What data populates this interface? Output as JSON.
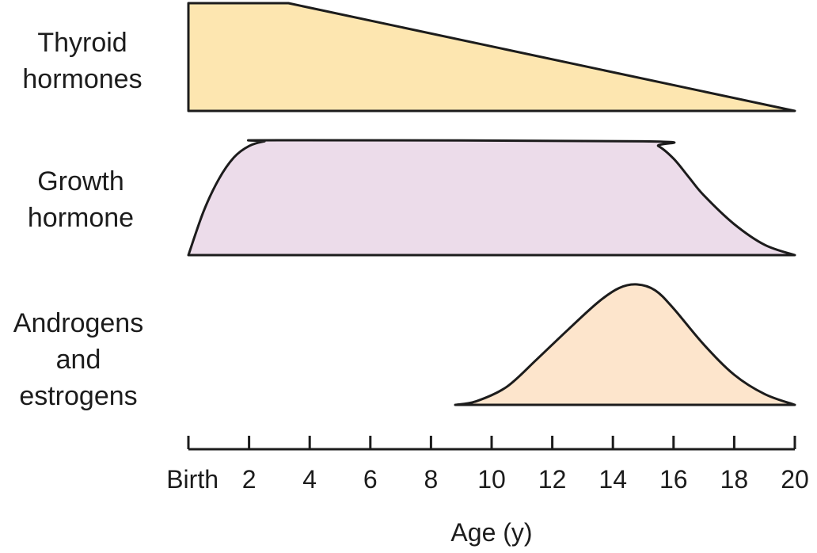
{
  "chart_data": {
    "type": "area",
    "xlabel": "Age (y)",
    "xlim": [
      0,
      20
    ],
    "x_ticks": [
      {
        "value": 0,
        "label": "Birth"
      },
      {
        "value": 2,
        "label": "2"
      },
      {
        "value": 4,
        "label": "4"
      },
      {
        "value": 6,
        "label": "6"
      },
      {
        "value": 8,
        "label": "8"
      },
      {
        "value": 10,
        "label": "10"
      },
      {
        "value": 12,
        "label": "12"
      },
      {
        "value": 14,
        "label": "14"
      },
      {
        "value": 16,
        "label": "16"
      },
      {
        "value": 18,
        "label": "18"
      },
      {
        "value": 20,
        "label": "20"
      }
    ],
    "grid": false,
    "series": [
      {
        "name": "Thyroid hormones",
        "label_lines": [
          "Thyroid",
          "hormones"
        ],
        "color": "#fde6b0",
        "x": [
          0,
          3.3,
          20
        ],
        "y": [
          1,
          1,
          0
        ]
      },
      {
        "name": "Growth hormone",
        "label_lines": [
          "Growth",
          "hormone"
        ],
        "color": "#ecdcea",
        "x": [
          0,
          0.5,
          1,
          1.5,
          2,
          2.5,
          3,
          15,
          15.5,
          16,
          16.5,
          17,
          18,
          19,
          20
        ],
        "y": [
          0,
          0.38,
          0.66,
          0.85,
          0.95,
          0.99,
          1,
          0.99,
          0.95,
          0.84,
          0.68,
          0.52,
          0.27,
          0.09,
          0
        ]
      },
      {
        "name": "Androgens and estrogens",
        "label_lines": [
          "Androgens",
          "and",
          "estrogens"
        ],
        "color": "#fde5cc",
        "x": [
          8.8,
          9.5,
          10.5,
          11.5,
          12.5,
          13.5,
          14.2,
          14.8,
          15.4,
          16,
          17,
          18,
          19,
          20
        ],
        "y": [
          0,
          0.03,
          0.15,
          0.38,
          0.62,
          0.85,
          0.97,
          1,
          0.95,
          0.8,
          0.5,
          0.25,
          0.09,
          0
        ]
      }
    ]
  }
}
